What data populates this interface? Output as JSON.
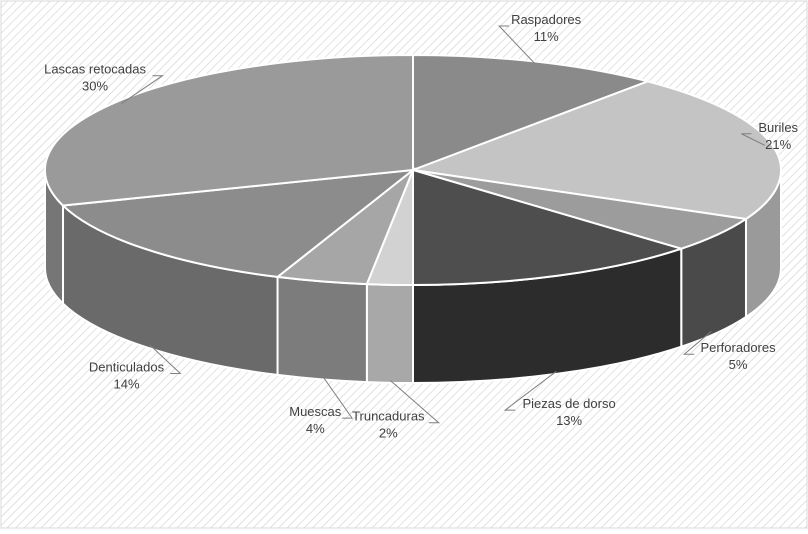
{
  "chart_data": {
    "type": "pie",
    "style": "3d",
    "legend": "none",
    "data_labels": "category-and-percent",
    "categories": [
      "Raspadores",
      "Buriles",
      "Perforadores",
      "Piezas de dorso",
      "Truncaduras",
      "Muescas",
      "Denticulados",
      "Lascas retocadas"
    ],
    "values": [
      11,
      21,
      5,
      13,
      2,
      4,
      14,
      30
    ],
    "labels": [
      "11%",
      "21%",
      "5%",
      "13%",
      "2%",
      "4%",
      "14%",
      "30%"
    ],
    "slices": [
      {
        "name": "Raspadores",
        "label": "11%",
        "value": 11,
        "top": "#8a8a8a",
        "side": "#6a6a6a"
      },
      {
        "name": "Buriles",
        "label": "21%",
        "value": 21,
        "top": "#c4c4c4",
        "side": "#9a9a9a"
      },
      {
        "name": "Perforadores",
        "label": "5%",
        "value": 5,
        "top": "#9c9c9c",
        "side": "#4a4a4a"
      },
      {
        "name": "Piezas de dorso",
        "label": "13%",
        "value": 13,
        "top": "#4e4e4e",
        "side": "#2c2c2c"
      },
      {
        "name": "Truncaduras",
        "label": "2%",
        "value": 2,
        "top": "#d2d2d2",
        "side": "#a8a8a8"
      },
      {
        "name": "Muescas",
        "label": "4%",
        "value": 4,
        "top": "#a6a6a6",
        "side": "#7c7c7c"
      },
      {
        "name": "Denticulados",
        "label": "14%",
        "value": 14,
        "top": "#8c8c8c",
        "side": "#6a6a6a"
      },
      {
        "name": "Lascas retocadas",
        "label": "30%",
        "value": 30,
        "top": "#9a9a9a",
        "side": "#767676"
      }
    ]
  }
}
